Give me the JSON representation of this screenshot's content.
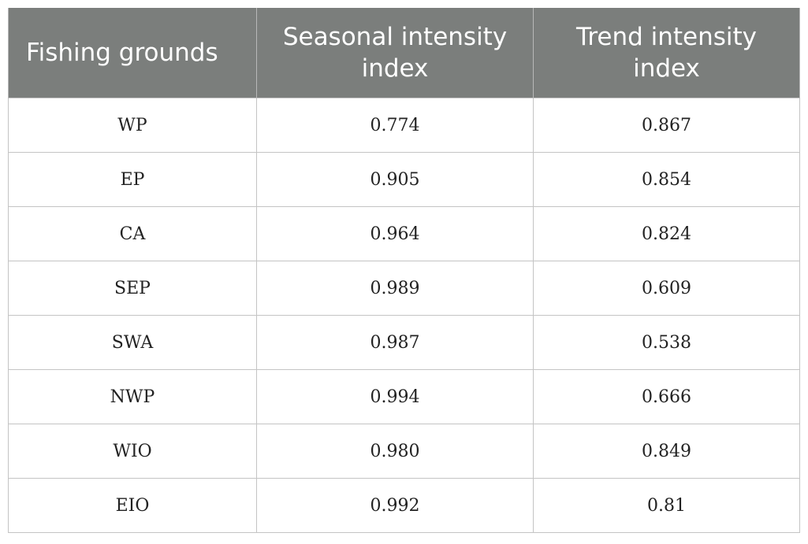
{
  "table": {
    "headers": [
      "Fishing grounds",
      "Seasonal intensity index",
      "Trend intensity index"
    ],
    "header_lines": {
      "seasonal": [
        "Seasonal intensity",
        "index"
      ],
      "trend": [
        "Trend intensity",
        "index"
      ]
    },
    "rows": [
      {
        "ground": "WP",
        "seasonal": "0.774",
        "trend": "0.867"
      },
      {
        "ground": "EP",
        "seasonal": "0.905",
        "trend": "0.854"
      },
      {
        "ground": "CA",
        "seasonal": "0.964",
        "trend": "0.824"
      },
      {
        "ground": "SEP",
        "seasonal": "0.989",
        "trend": "0.609"
      },
      {
        "ground": "SWA",
        "seasonal": "0.987",
        "trend": "0.538"
      },
      {
        "ground": "NWP",
        "seasonal": "0.994",
        "trend": "0.666"
      },
      {
        "ground": "WIO",
        "seasonal": "0.980",
        "trend": "0.849"
      },
      {
        "ground": "EIO",
        "seasonal": "0.992",
        "trend": "0.81"
      }
    ]
  },
  "colors": {
    "header_bg": "#7b7e7c",
    "header_text": "#ffffff",
    "grid": "#c4c4c4"
  }
}
